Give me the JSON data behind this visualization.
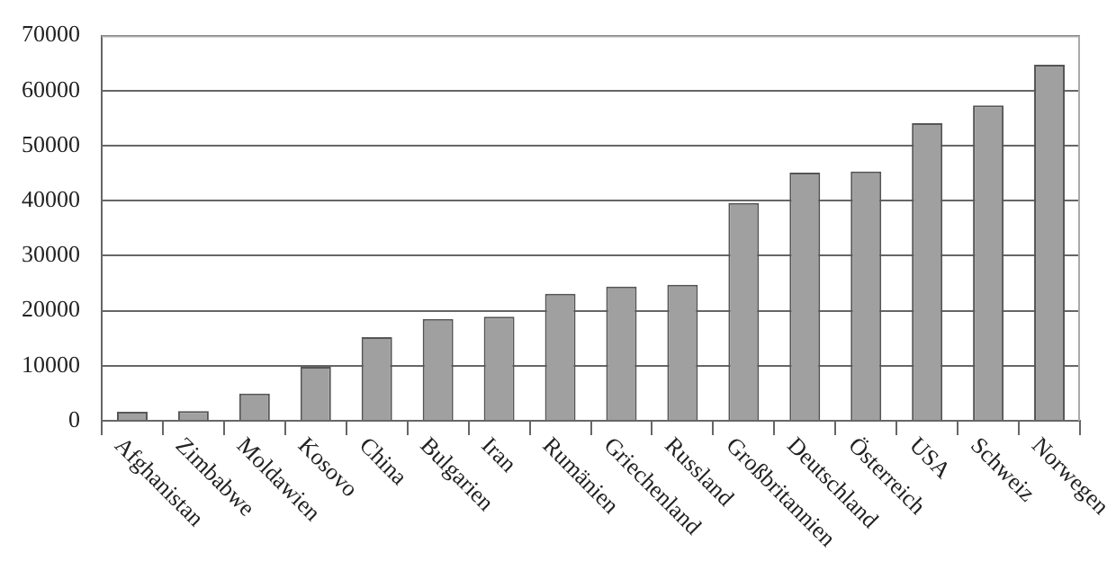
{
  "chart_data": {
    "type": "bar",
    "categories": [
      "Afghanistan",
      "Zimbabwe",
      "Moldawien",
      "Kosovo",
      "China",
      "Bulgarien",
      "Iran",
      "Rumänien",
      "Griechenland",
      "Russland",
      "Großbritannien",
      "Deutschland",
      "Österreich",
      "USA",
      "Schweiz",
      "Norwegen"
    ],
    "values": [
      1650,
      1750,
      4950,
      9800,
      15200,
      18500,
      18900,
      23100,
      24400,
      24700,
      39600,
      45100,
      45300,
      54100,
      57300,
      64700
    ],
    "color": "#a0a0a0",
    "ylim": [
      0,
      70000
    ],
    "yticks": [
      0,
      10000,
      20000,
      30000,
      40000,
      50000,
      60000,
      70000
    ],
    "grid": "y",
    "legend": false
  }
}
